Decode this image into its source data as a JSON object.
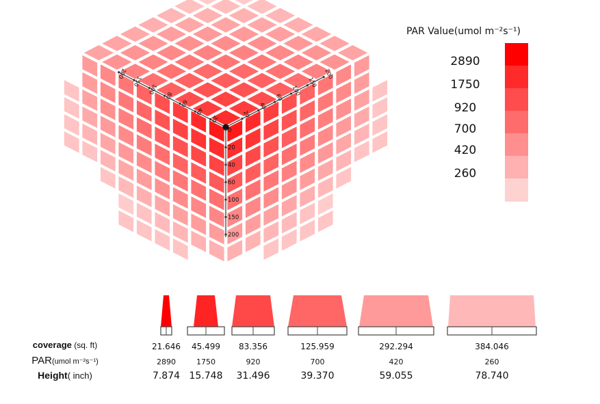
{
  "chart_data": {
    "type": "bar",
    "legend": {
      "title": "PAR Value(umol m⁻²s⁻¹)",
      "values": [
        "2890",
        "1750",
        "920",
        "700",
        "420",
        "260"
      ],
      "colors": [
        "#ff0000",
        "#ff2a2a",
        "#ff4c4c",
        "#ff6c6c",
        "#ff8f8f",
        "#ffb0b0",
        "#ffd2d2"
      ]
    },
    "cube_axes": {
      "left_ticks": [
        "20",
        "40",
        "60",
        "80",
        "100",
        "150",
        "200"
      ],
      "right_ticks": [
        "20",
        "40",
        "60",
        "100",
        "150",
        "200"
      ],
      "vertical_ticks": [
        "0",
        "20",
        "40",
        "60",
        "100",
        "150",
        "200"
      ]
    },
    "table": {
      "row_labels": {
        "coverage": {
          "main": "coverage",
          "unit": " (sq. ft)"
        },
        "par": {
          "main": "PAR",
          "unit": "(umol m⁻²s⁻¹)"
        },
        "height": {
          "main": "Height",
          "unit": "( inch)"
        }
      },
      "columns": [
        {
          "coverage": "21.646",
          "par": "2890",
          "height": "7.874",
          "color": "#ff0000"
        },
        {
          "coverage": "45.499",
          "par": "1750",
          "height": "15.748",
          "color": "#ff2424"
        },
        {
          "coverage": "83.356",
          "par": "920",
          "height": "31.496",
          "color": "#ff4848"
        },
        {
          "coverage": "125.959",
          "par": "700",
          "height": "39.370",
          "color": "#ff6666"
        },
        {
          "coverage": "292.294",
          "par": "420",
          "height": "59.055",
          "color": "#ff9a9a"
        },
        {
          "coverage": "384.046",
          "par": "260",
          "height": "78.740",
          "color": "#ffb8b8"
        }
      ]
    }
  }
}
